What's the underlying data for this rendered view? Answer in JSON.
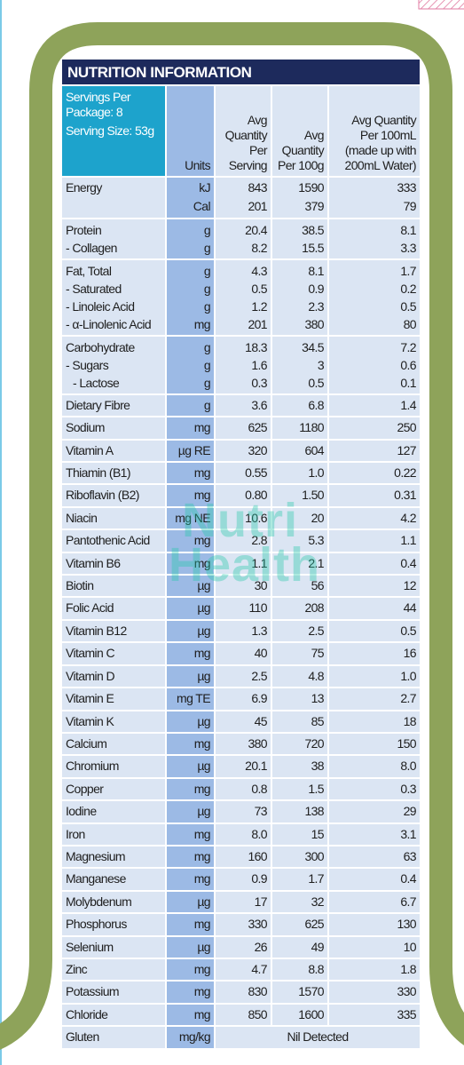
{
  "table": {
    "title": "NUTRITION INFORMATION",
    "serving_info": [
      "Servings Per Package: 8",
      "Serving Size: 53g"
    ],
    "headers": [
      "Units",
      "Avg Quantity Per Serving",
      "Avg Quantity Per 100g",
      "Avg Quantity Per 100mL (made up with 200mL Water)"
    ],
    "rows": [
      {
        "names": [
          "Energy"
        ],
        "units": [
          "kJ",
          "Cal"
        ],
        "serving": [
          "843",
          "201"
        ],
        "per_100g": [
          "1590",
          "379"
        ],
        "per_100ml": [
          "333",
          "79"
        ]
      },
      {
        "names": [
          "Protein",
          "- Collagen"
        ],
        "units": [
          "g",
          "g"
        ],
        "serving": [
          "20.4",
          "8.2"
        ],
        "per_100g": [
          "38.5",
          "15.5"
        ],
        "per_100ml": [
          "8.1",
          "3.3"
        ]
      },
      {
        "names": [
          "Fat, Total",
          "- Saturated",
          "- Linoleic Acid",
          "- α-Linolenic Acid"
        ],
        "units": [
          "g",
          "g",
          "g",
          "mg"
        ],
        "serving": [
          "4.3",
          "0.5",
          "1.2",
          "201"
        ],
        "per_100g": [
          "8.1",
          "0.9",
          "2.3",
          "380"
        ],
        "per_100ml": [
          "1.7",
          "0.2",
          "0.5",
          "80"
        ]
      },
      {
        "names": [
          "Carbohydrate",
          "- Sugars",
          "- Lactose"
        ],
        "units": [
          "g",
          "g",
          "g"
        ],
        "serving": [
          "18.3",
          "1.6",
          "0.3"
        ],
        "per_100g": [
          "34.5",
          "3",
          "0.5"
        ],
        "per_100ml": [
          "7.2",
          "0.6",
          "0.1"
        ]
      },
      {
        "names": [
          "Dietary Fibre"
        ],
        "units": [
          "g"
        ],
        "serving": [
          "3.6"
        ],
        "per_100g": [
          "6.8"
        ],
        "per_100ml": [
          "1.4"
        ]
      },
      {
        "names": [
          "Sodium"
        ],
        "units": [
          "mg"
        ],
        "serving": [
          "625"
        ],
        "per_100g": [
          "1180"
        ],
        "per_100ml": [
          "250"
        ]
      },
      {
        "names": [
          "Vitamin A"
        ],
        "units": [
          "µg RE"
        ],
        "serving": [
          "320"
        ],
        "per_100g": [
          "604"
        ],
        "per_100ml": [
          "127"
        ]
      },
      {
        "names": [
          "Thiamin (B1)"
        ],
        "units": [
          "mg"
        ],
        "serving": [
          "0.55"
        ],
        "per_100g": [
          "1.0"
        ],
        "per_100ml": [
          "0.22"
        ]
      },
      {
        "names": [
          "Riboflavin (B2)"
        ],
        "units": [
          "mg"
        ],
        "serving": [
          "0.80"
        ],
        "per_100g": [
          "1.50"
        ],
        "per_100ml": [
          "0.31"
        ]
      },
      {
        "names": [
          "Niacin"
        ],
        "units": [
          "mg NE"
        ],
        "serving": [
          "10.6"
        ],
        "per_100g": [
          "20"
        ],
        "per_100ml": [
          "4.2"
        ]
      },
      {
        "names": [
          "Pantothenic Acid"
        ],
        "units": [
          "mg"
        ],
        "serving": [
          "2.8"
        ],
        "per_100g": [
          "5.3"
        ],
        "per_100ml": [
          "1.1"
        ]
      },
      {
        "names": [
          "Vitamin B6"
        ],
        "units": [
          "mg"
        ],
        "serving": [
          "1.1"
        ],
        "per_100g": [
          "2.1"
        ],
        "per_100ml": [
          "0.4"
        ]
      },
      {
        "names": [
          "Biotin"
        ],
        "units": [
          "µg"
        ],
        "serving": [
          "30"
        ],
        "per_100g": [
          "56"
        ],
        "per_100ml": [
          "12"
        ]
      },
      {
        "names": [
          "Folic Acid"
        ],
        "units": [
          "µg"
        ],
        "serving": [
          "110"
        ],
        "per_100g": [
          "208"
        ],
        "per_100ml": [
          "44"
        ]
      },
      {
        "names": [
          "Vitamin B12"
        ],
        "units": [
          "µg"
        ],
        "serving": [
          "1.3"
        ],
        "per_100g": [
          "2.5"
        ],
        "per_100ml": [
          "0.5"
        ]
      },
      {
        "names": [
          "Vitamin C"
        ],
        "units": [
          "mg"
        ],
        "serving": [
          "40"
        ],
        "per_100g": [
          "75"
        ],
        "per_100ml": [
          "16"
        ]
      },
      {
        "names": [
          "Vitamin D"
        ],
        "units": [
          "µg"
        ],
        "serving": [
          "2.5"
        ],
        "per_100g": [
          "4.8"
        ],
        "per_100ml": [
          "1.0"
        ]
      },
      {
        "names": [
          "Vitamin E"
        ],
        "units": [
          "mg TE"
        ],
        "serving": [
          "6.9"
        ],
        "per_100g": [
          "13"
        ],
        "per_100ml": [
          "2.7"
        ]
      },
      {
        "names": [
          "Vitamin K"
        ],
        "units": [
          "µg"
        ],
        "serving": [
          "45"
        ],
        "per_100g": [
          "85"
        ],
        "per_100ml": [
          "18"
        ]
      },
      {
        "names": [
          "Calcium"
        ],
        "units": [
          "mg"
        ],
        "serving": [
          "380"
        ],
        "per_100g": [
          "720"
        ],
        "per_100ml": [
          "150"
        ]
      },
      {
        "names": [
          "Chromium"
        ],
        "units": [
          "µg"
        ],
        "serving": [
          "20.1"
        ],
        "per_100g": [
          "38"
        ],
        "per_100ml": [
          "8.0"
        ]
      },
      {
        "names": [
          "Copper"
        ],
        "units": [
          "mg"
        ],
        "serving": [
          "0.8"
        ],
        "per_100g": [
          "1.5"
        ],
        "per_100ml": [
          "0.3"
        ]
      },
      {
        "names": [
          "Iodine"
        ],
        "units": [
          "µg"
        ],
        "serving": [
          "73"
        ],
        "per_100g": [
          "138"
        ],
        "per_100ml": [
          "29"
        ]
      },
      {
        "names": [
          "Iron"
        ],
        "units": [
          "mg"
        ],
        "serving": [
          "8.0"
        ],
        "per_100g": [
          "15"
        ],
        "per_100ml": [
          "3.1"
        ]
      },
      {
        "names": [
          "Magnesium"
        ],
        "units": [
          "mg"
        ],
        "serving": [
          "160"
        ],
        "per_100g": [
          "300"
        ],
        "per_100ml": [
          "63"
        ]
      },
      {
        "names": [
          "Manganese"
        ],
        "units": [
          "mg"
        ],
        "serving": [
          "0.9"
        ],
        "per_100g": [
          "1.7"
        ],
        "per_100ml": [
          "0.4"
        ]
      },
      {
        "names": [
          "Molybdenum"
        ],
        "units": [
          "µg"
        ],
        "serving": [
          "17"
        ],
        "per_100g": [
          "32"
        ],
        "per_100ml": [
          "6.7"
        ]
      },
      {
        "names": [
          "Phosphorus"
        ],
        "units": [
          "mg"
        ],
        "serving": [
          "330"
        ],
        "per_100g": [
          "625"
        ],
        "per_100ml": [
          "130"
        ]
      },
      {
        "names": [
          "Selenium"
        ],
        "units": [
          "µg"
        ],
        "serving": [
          "26"
        ],
        "per_100g": [
          "49"
        ],
        "per_100ml": [
          "10"
        ]
      },
      {
        "names": [
          "Zinc"
        ],
        "units": [
          "mg"
        ],
        "serving": [
          "4.7"
        ],
        "per_100g": [
          "8.8"
        ],
        "per_100ml": [
          "1.8"
        ]
      },
      {
        "names": [
          "Potassium"
        ],
        "units": [
          "mg"
        ],
        "serving": [
          "830"
        ],
        "per_100g": [
          "1570"
        ],
        "per_100ml": [
          "330"
        ]
      },
      {
        "names": [
          "Chloride"
        ],
        "units": [
          "mg"
        ],
        "serving": [
          "850"
        ],
        "per_100g": [
          "1600"
        ],
        "per_100ml": [
          "335"
        ]
      },
      {
        "names": [
          "Gluten"
        ],
        "units": [
          "mg/kg"
        ],
        "value": [
          "Nil Detected"
        ]
      }
    ]
  },
  "watermark": [
    "Nutri",
    "Health"
  ]
}
